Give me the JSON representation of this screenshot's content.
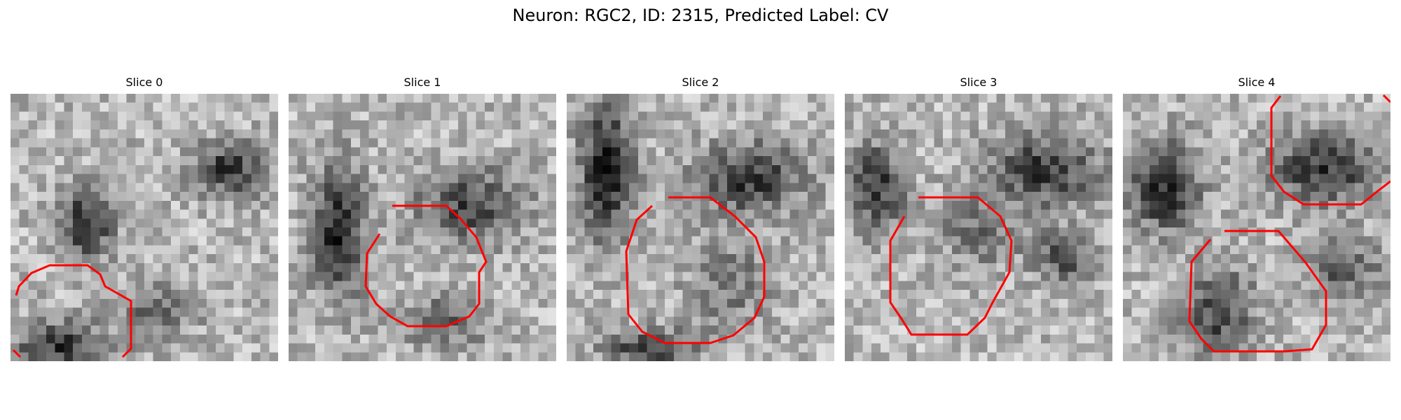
{
  "figure": {
    "title": "Neuron: RGC2, ID: 2315, Predicted Label: CV",
    "contour_color": "#ff0000",
    "panels": [
      {
        "title": "Slice 0"
      },
      {
        "title": "Slice 1"
      },
      {
        "title": "Slice 2"
      },
      {
        "title": "Slice 3"
      },
      {
        "title": "Slice 4"
      }
    ]
  }
}
